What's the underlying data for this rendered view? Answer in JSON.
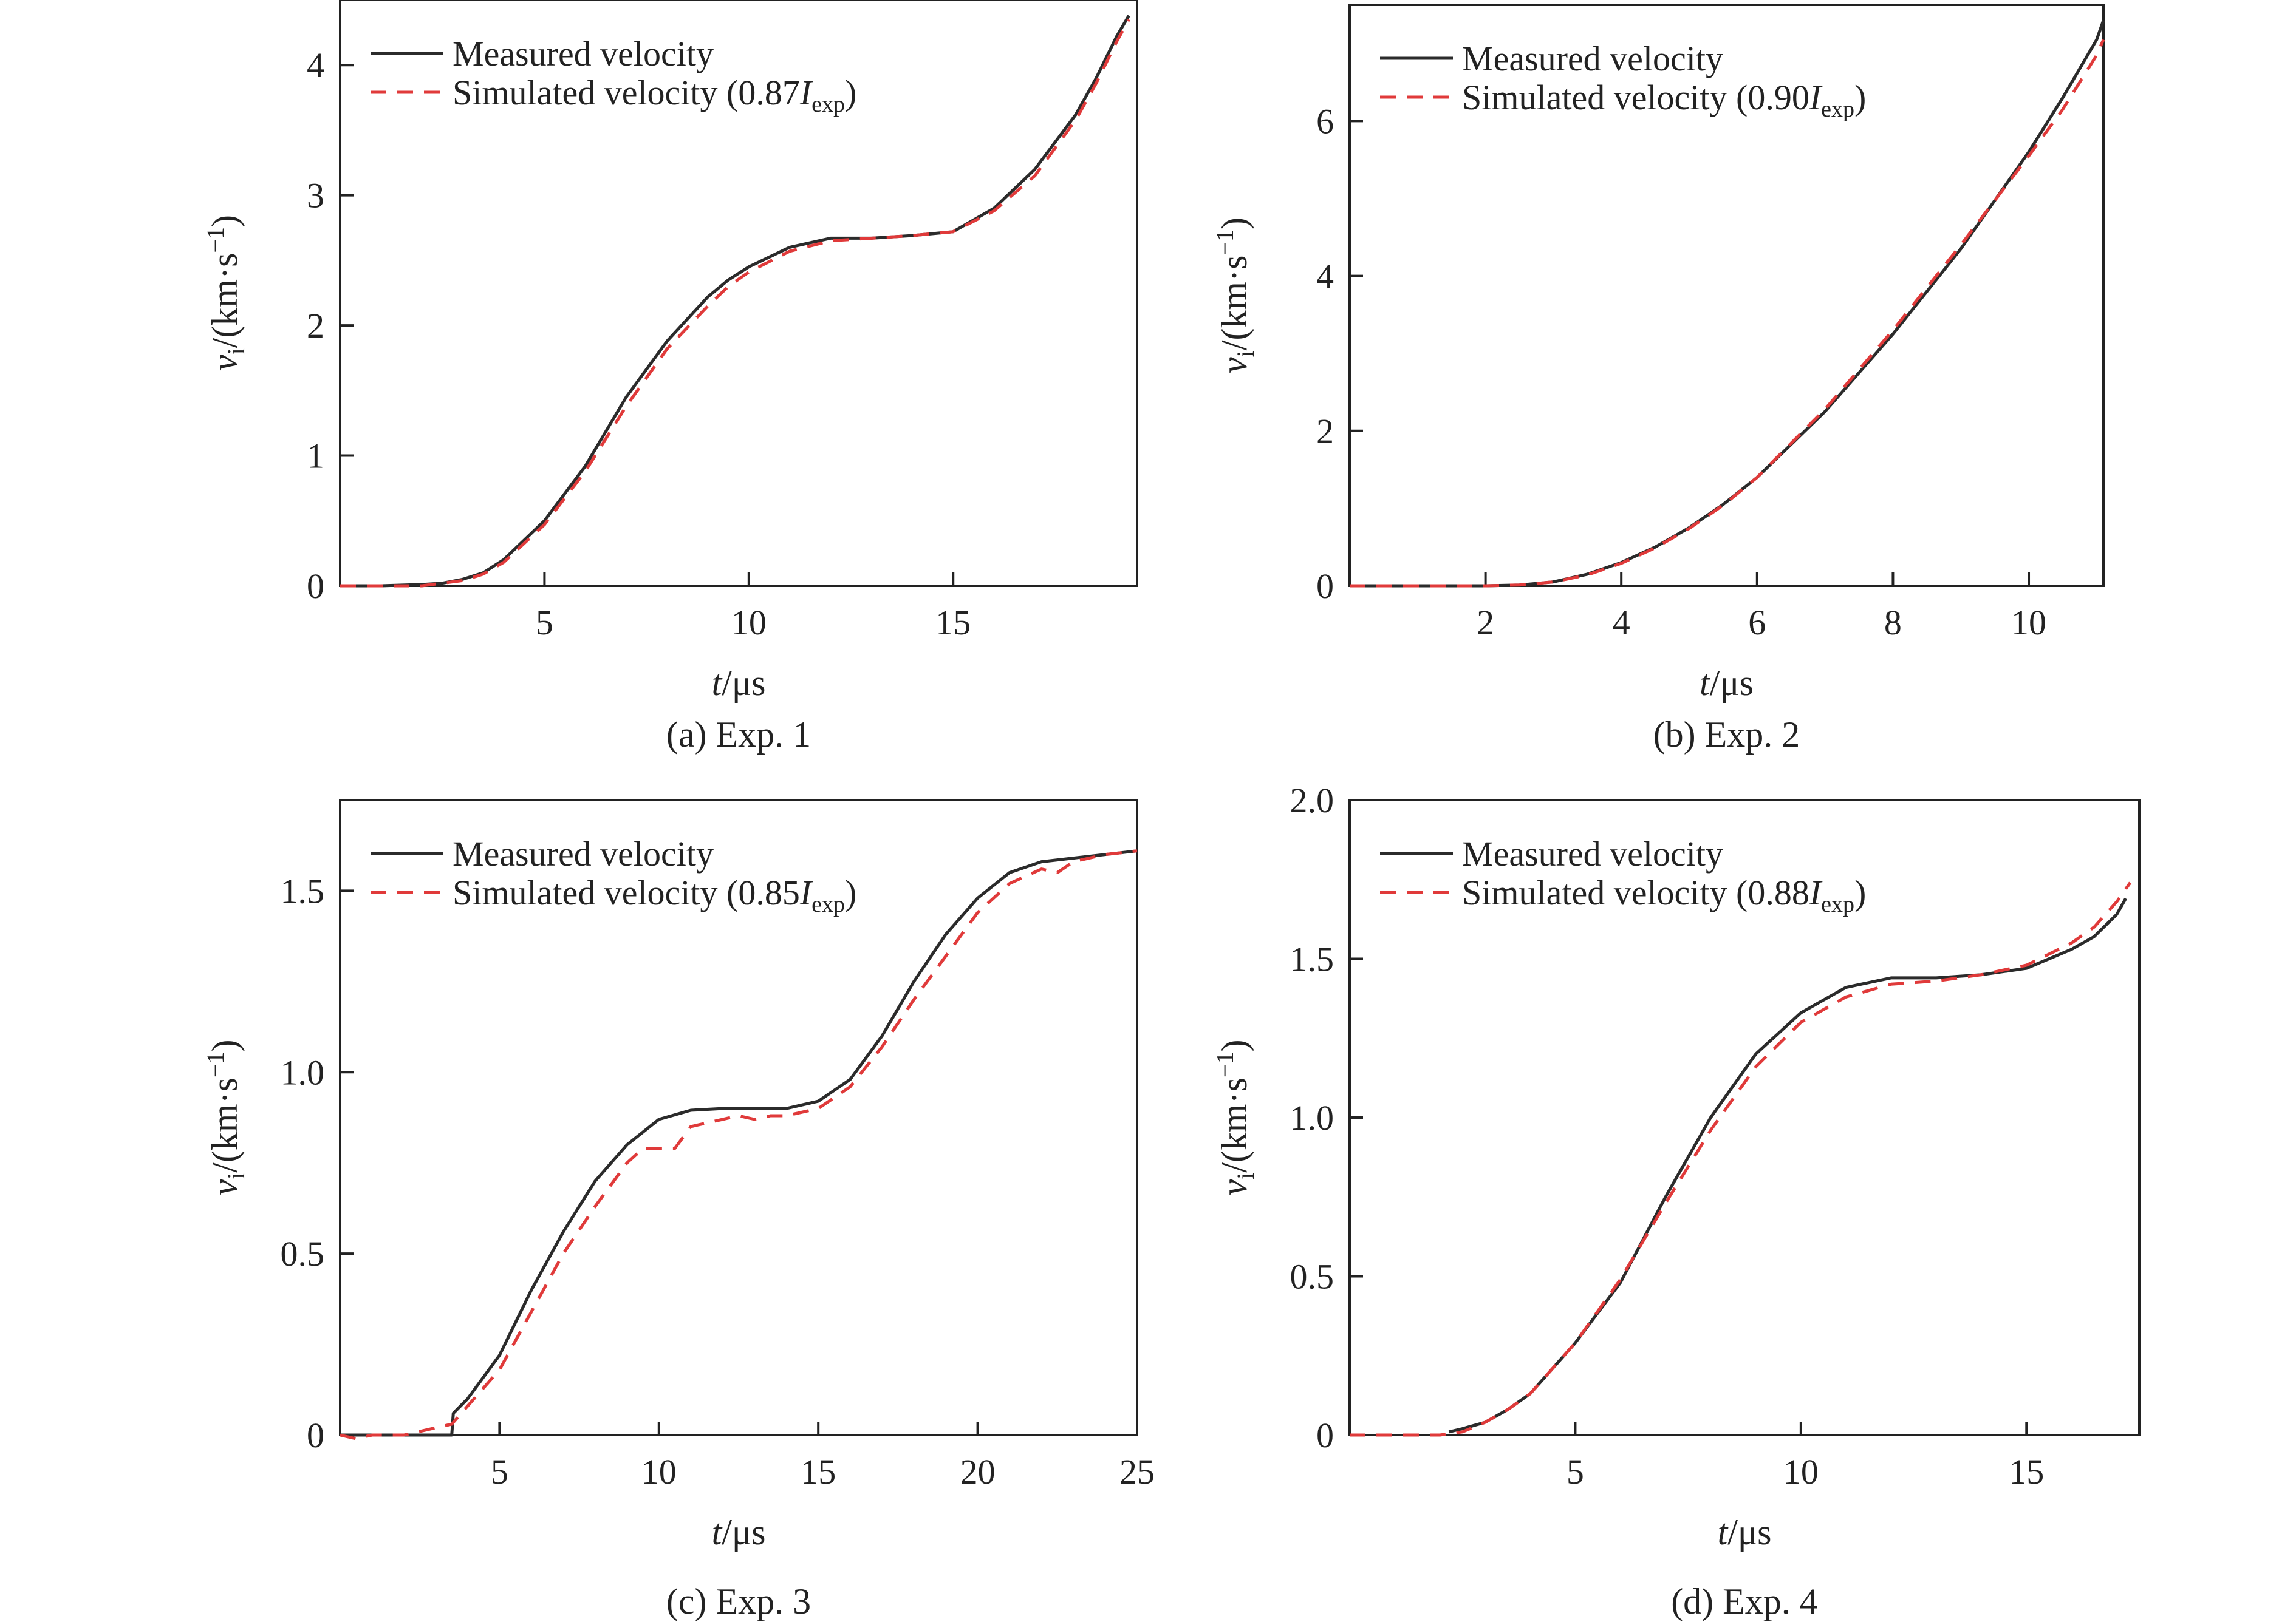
{
  "colors": {
    "measured": "#2b2b2b",
    "simulated": "#e03a3a",
    "axis": "#222222"
  },
  "chart_data": [
    {
      "type": "line",
      "caption": "(a) Exp. 1",
      "xlabel_italic": "t",
      "xlabel_unit": "/μs",
      "ylabel_italic": "v",
      "ylabel_sub": "i",
      "ylabel_unit": "/(km·s",
      "ylabel_sup": "−1",
      "ylabel_close": ")",
      "xlim": [
        0,
        19.5
      ],
      "ylim": [
        0,
        4.5
      ],
      "xticks": [
        5,
        10,
        15
      ],
      "yticks": [
        0,
        1,
        2,
        3,
        4
      ],
      "legend": {
        "position": "top-left",
        "measured": "Measured velocity",
        "simulated_prefix": "Simulated velocity (0.87",
        "simulated_var": "I",
        "simulated_sub": "exp",
        "simulated_suffix": ")"
      },
      "series": [
        {
          "name": "Measured velocity",
          "x": [
            0,
            1,
            2,
            2.5,
            3,
            3.5,
            4,
            5,
            6,
            7,
            8,
            9,
            9.5,
            10,
            11,
            12,
            13,
            14,
            15,
            16,
            17,
            18,
            18.5,
            19,
            19.3
          ],
          "y": [
            0,
            0,
            0.01,
            0.02,
            0.05,
            0.1,
            0.2,
            0.5,
            0.92,
            1.45,
            1.88,
            2.22,
            2.35,
            2.45,
            2.6,
            2.67,
            2.67,
            2.69,
            2.72,
            2.9,
            3.2,
            3.62,
            3.9,
            4.22,
            4.38
          ]
        },
        {
          "name": "Simulated velocity (0.87Iexp)",
          "x": [
            0,
            1,
            2,
            2.5,
            3,
            3.5,
            4,
            5,
            6,
            7,
            8,
            9,
            9.5,
            10,
            11,
            12,
            13,
            14,
            15,
            16,
            17,
            18,
            18.5,
            19,
            19.3
          ],
          "y": [
            0,
            0,
            0,
            0.02,
            0.04,
            0.09,
            0.18,
            0.47,
            0.88,
            1.38,
            1.82,
            2.15,
            2.3,
            2.41,
            2.57,
            2.65,
            2.67,
            2.69,
            2.72,
            2.88,
            3.15,
            3.58,
            3.86,
            4.18,
            4.35
          ]
        }
      ]
    },
    {
      "type": "line",
      "caption": "(b) Exp. 2",
      "xlabel_italic": "t",
      "xlabel_unit": "/μs",
      "ylabel_italic": "v",
      "ylabel_sub": "i",
      "ylabel_unit": "/(km·s",
      "ylabel_sup": "−1",
      "ylabel_close": ")",
      "xlim": [
        0,
        11.1
      ],
      "ylim": [
        0,
        7.5
      ],
      "xticks": [
        2,
        4,
        6,
        8,
        10
      ],
      "yticks": [
        0,
        2,
        4,
        6
      ],
      "legend": {
        "position": "top-left",
        "measured": "Measured velocity",
        "simulated_prefix": "Simulated velocity (0.90",
        "simulated_var": "I",
        "simulated_sub": "exp",
        "simulated_suffix": ")"
      },
      "series": [
        {
          "name": "Measured velocity",
          "x": [
            0,
            1,
            2,
            2.5,
            3,
            3.5,
            4,
            4.5,
            5,
            5.5,
            6,
            7,
            8,
            9,
            10,
            10.5,
            11,
            11.1
          ],
          "y": [
            0,
            0,
            0,
            0.01,
            0.05,
            0.15,
            0.3,
            0.5,
            0.75,
            1.05,
            1.4,
            2.25,
            3.25,
            4.35,
            5.6,
            6.3,
            7.05,
            7.3
          ]
        },
        {
          "name": "Simulated velocity (0.90Iexp)",
          "x": [
            0,
            1,
            2,
            2.5,
            3,
            3.5,
            4,
            4.5,
            5,
            5.5,
            6,
            7,
            8,
            9,
            10,
            10.5,
            11,
            11.1
          ],
          "y": [
            0,
            0,
            0,
            0.01,
            0.05,
            0.14,
            0.29,
            0.49,
            0.74,
            1.04,
            1.4,
            2.28,
            3.3,
            4.4,
            5.55,
            6.15,
            6.85,
            7.05
          ]
        }
      ]
    },
    {
      "type": "line",
      "caption": "(c) Exp. 3",
      "xlabel_italic": "t",
      "xlabel_unit": "/μs",
      "ylabel_italic": "v",
      "ylabel_sub": "i",
      "ylabel_unit": "/(km·s",
      "ylabel_sup": "−1",
      "ylabel_close": ")",
      "xlim": [
        0,
        25
      ],
      "ylim": [
        0,
        1.75
      ],
      "xticks": [
        5,
        10,
        15,
        20,
        25
      ],
      "yticks": [
        0,
        0.5,
        1.0,
        1.5
      ],
      "ytick_labels": [
        "0",
        "0.5",
        "1.0",
        "1.5"
      ],
      "legend": {
        "position": "top-left",
        "measured": "Measured velocity",
        "simulated_prefix": "Simulated velocity (0.85",
        "simulated_var": "I",
        "simulated_sub": "exp",
        "simulated_suffix": ")"
      },
      "series": [
        {
          "name": "Measured velocity",
          "x": [
            0,
            1,
            2,
            3,
            3.5,
            3.55,
            4,
            5,
            6,
            7,
            8,
            9,
            10,
            11,
            12,
            13,
            14,
            15,
            16,
            17,
            18,
            19,
            20,
            21,
            22,
            23,
            24,
            25
          ],
          "y": [
            0,
            0,
            0,
            0,
            0,
            0.06,
            0.1,
            0.22,
            0.4,
            0.56,
            0.7,
            0.8,
            0.87,
            0.895,
            0.9,
            0.9,
            0.9,
            0.92,
            0.98,
            1.1,
            1.25,
            1.38,
            1.48,
            1.55,
            1.58,
            1.59,
            1.6,
            1.61
          ]
        },
        {
          "name": "Simulated velocity (0.85Iexp)",
          "x": [
            0,
            0.5,
            1,
            2,
            3,
            3.5,
            4,
            5,
            6,
            7,
            8,
            9,
            9.5,
            10.5,
            11,
            12,
            12.5,
            13,
            13.5,
            14,
            15,
            16,
            17,
            18,
            19,
            20,
            21,
            22,
            22.5,
            23,
            24,
            25
          ],
          "y": [
            0,
            -0.01,
            0,
            0,
            0.02,
            0.03,
            0.08,
            0.18,
            0.34,
            0.5,
            0.63,
            0.75,
            0.79,
            0.79,
            0.85,
            0.87,
            0.88,
            0.87,
            0.88,
            0.88,
            0.9,
            0.96,
            1.07,
            1.2,
            1.32,
            1.44,
            1.52,
            1.56,
            1.55,
            1.58,
            1.6,
            1.61
          ]
        }
      ]
    },
    {
      "type": "line",
      "caption": "(d) Exp. 4",
      "xlabel_italic": "t",
      "xlabel_unit": "/μs",
      "ylabel_italic": "v",
      "ylabel_sub": "i",
      "ylabel_unit": "/(km·s",
      "ylabel_sup": "−1",
      "ylabel_close": ")",
      "xlim": [
        0,
        17.5
      ],
      "ylim": [
        0,
        2.0
      ],
      "xticks": [
        5,
        10,
        15
      ],
      "yticks": [
        0,
        0.5,
        1.0,
        1.5,
        2.0
      ],
      "ytick_labels": [
        "0",
        "0.5",
        "1.0",
        "1.5",
        "2.0"
      ],
      "legend": {
        "position": "top-left",
        "measured": "Measured velocity",
        "simulated_prefix": "Simulated velocity (0.88",
        "simulated_var": "I",
        "simulated_sub": "exp",
        "simulated_suffix": ")"
      },
      "series": [
        {
          "name": "Measured velocity",
          "x": [
            2.2,
            2.5,
            3,
            3.5,
            4,
            5,
            6,
            7,
            8,
            9,
            10,
            11,
            12,
            13,
            14,
            15,
            16,
            16.5,
            17,
            17.2
          ],
          "y": [
            0.01,
            0.02,
            0.04,
            0.08,
            0.13,
            0.29,
            0.48,
            0.75,
            1.0,
            1.2,
            1.33,
            1.41,
            1.44,
            1.44,
            1.45,
            1.47,
            1.53,
            1.57,
            1.64,
            1.69
          ]
        },
        {
          "name": "Simulated velocity (0.88Iexp)",
          "x": [
            0,
            1,
            2,
            2.5,
            3,
            3.5,
            4,
            5,
            6,
            7,
            8,
            9,
            10,
            11,
            12,
            13,
            14,
            15,
            16,
            16.5,
            17,
            17.3
          ],
          "y": [
            0,
            0,
            0,
            0.01,
            0.04,
            0.08,
            0.13,
            0.29,
            0.49,
            0.73,
            0.96,
            1.16,
            1.3,
            1.38,
            1.42,
            1.43,
            1.45,
            1.48,
            1.55,
            1.6,
            1.68,
            1.74
          ]
        }
      ]
    }
  ]
}
